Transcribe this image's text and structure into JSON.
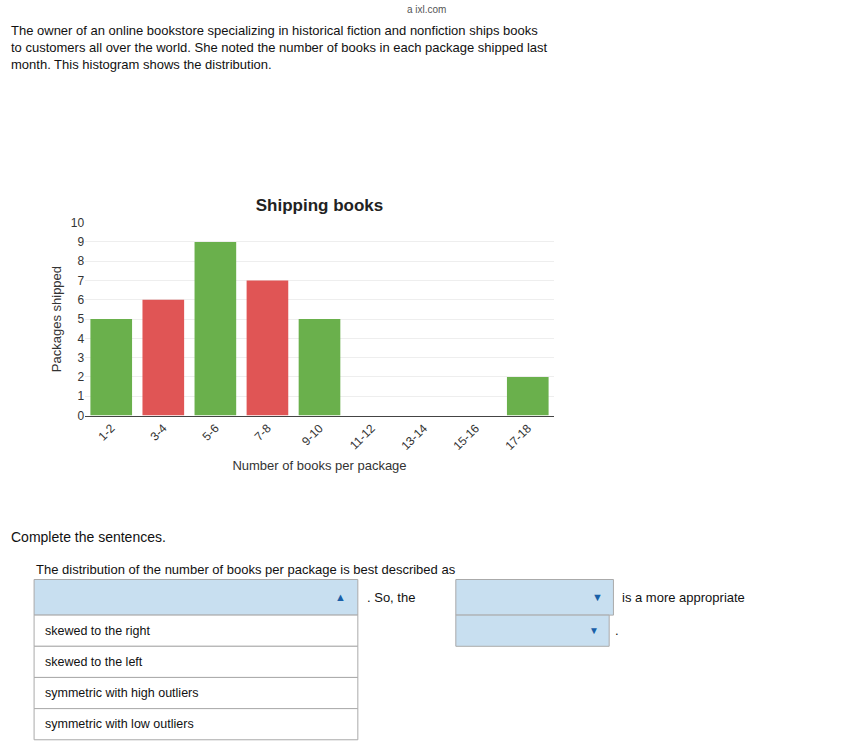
{
  "chart_data": {
    "type": "bar",
    "title": "Shipping books",
    "xlabel": "Number of books per package",
    "ylabel": "Packages shipped",
    "categories": [
      "1-2",
      "3-4",
      "5-6",
      "7-8",
      "9-10",
      "11-12",
      "13-14",
      "15-16",
      "17-18"
    ],
    "values": [
      5,
      6,
      9,
      7,
      5,
      0,
      0,
      0,
      2
    ],
    "colors": [
      "#6ab04c",
      "#e05555",
      "#6ab04c",
      "#e05555",
      "#6ab04c",
      "#6ab04c",
      "#6ab04c",
      "#6ab04c",
      "#6ab04c"
    ],
    "ylim": [
      0,
      10
    ],
    "yticks": [
      0,
      1,
      2,
      3,
      4,
      5,
      6,
      7,
      8,
      9,
      10
    ],
    "grid": true,
    "annotations": [
      "a ixl.com",
      "The owner of an online bookstore specializing in historical fiction and nonfiction ships books\nto customers all over the world. She noted the number of books in each package shipped last\nmonth. This histogram shows the distribution.",
      "Complete the sentences.",
      "The distribution of the number of books per package is best described as",
      "▲",
      ". So, the",
      "▼",
      "is a more appropriate",
      "skewed to the right",
      "skewed to the left",
      "symmetric with high outliers",
      "symmetric with low outliers",
      "▼",
      "."
    ]
  }
}
